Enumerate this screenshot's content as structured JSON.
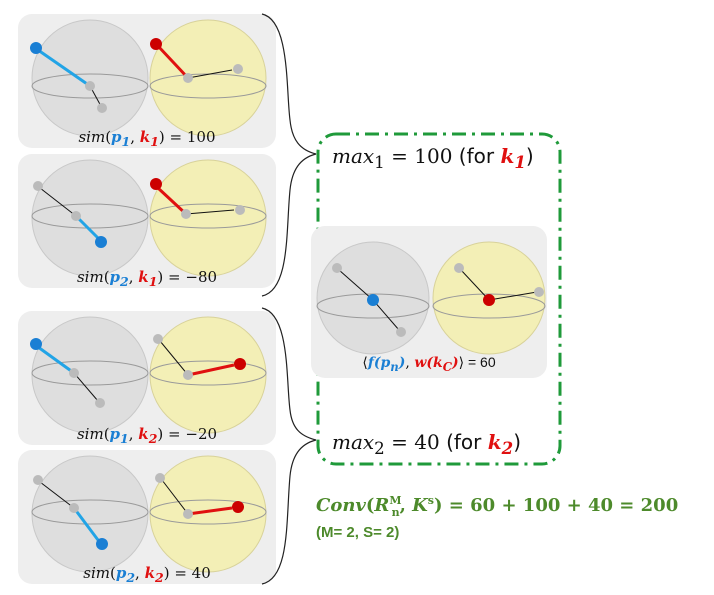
{
  "panels": [
    {
      "p_sub": "1",
      "k_sub": "1",
      "value": "100"
    },
    {
      "p_sub": "2",
      "k_sub": "1",
      "value": "−80"
    },
    {
      "p_sub": "1",
      "k_sub": "2",
      "value": "−20"
    },
    {
      "p_sub": "2",
      "k_sub": "2",
      "value": "40"
    }
  ],
  "caption_text": {
    "sim": "sim",
    "p": "p",
    "k": "k",
    "equals": " = "
  },
  "max1": {
    "label": "max",
    "sub": "1",
    "eq": " = 100 ",
    "for_text": "(for ",
    "k": "k",
    "k_sub": "1",
    "close": ")"
  },
  "max2": {
    "label": "max",
    "sub": "2",
    "eq": " = 40 ",
    "for_text": "(for ",
    "k": "k",
    "k_sub": "2",
    "close": ")"
  },
  "inner_product": {
    "f": "f",
    "p": "p",
    "p_sub": "n",
    "w": "w",
    "k": "k",
    "k_sub": "C",
    "value": " = 60"
  },
  "conv": {
    "name": "Conv",
    "R": "R",
    "R_sub": "n",
    "R_sup": "M",
    "K": "K",
    "K_sup": "s",
    "rhs": " = 60 + 100 + 40 = 200"
  },
  "params": "(M= 2, S= 2)",
  "colors": {
    "blue": "#1a7fd4",
    "red": "#e01010",
    "green": "#1f9a3a",
    "conv_text": "#4d8a2b",
    "gray_sphere": "#dcdcdc",
    "yellow_sphere": "#f4f0b0"
  }
}
